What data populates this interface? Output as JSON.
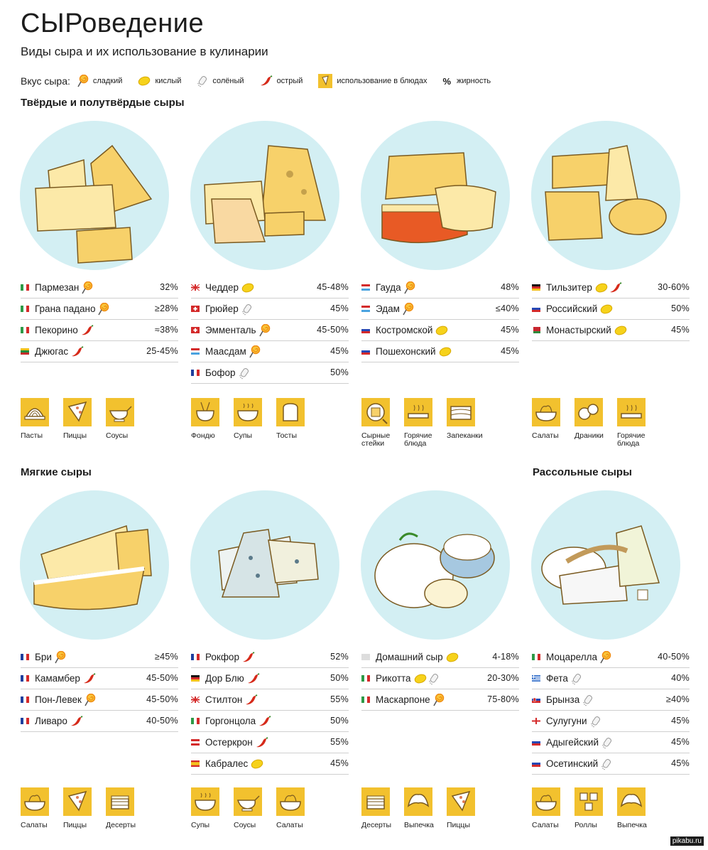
{
  "header": {
    "title": "СЫРоведение",
    "subtitle": "Виды сыра и их использование в кулинарии"
  },
  "legend": {
    "lead": "Вкус сыра:",
    "items": [
      {
        "icon": "lollipop-icon",
        "label": "сладкий"
      },
      {
        "icon": "lemon-icon",
        "label": "кислый"
      },
      {
        "icon": "salt-shaker-icon",
        "label": "солёный"
      },
      {
        "icon": "chili-pepper-icon",
        "label": "острый"
      },
      {
        "icon": "dish-icon",
        "label": "использование в блюдах"
      },
      {
        "icon": "percent-sign",
        "symbol": "%",
        "label": "жирность"
      }
    ]
  },
  "colors": {
    "plate": "#d3eff3",
    "cheese": "#f7d16a",
    "cheese_light": "#fce9a8",
    "outline": "#7a5a20",
    "use_box": "#f2c12e",
    "lemon": "#f6d21b",
    "chili": "#d62a1a",
    "lollipop": "#f08a10"
  },
  "sections": {
    "hard": "Твёрдые и полутвёрдые сыры",
    "soft": "Мягкие сыры",
    "brine": "Рассольные сыры"
  },
  "hard": [
    {
      "plate_style": "hard-1",
      "cheeses": [
        {
          "flag": "it",
          "name": "Пармезан",
          "tags": [
            "sweet"
          ],
          "fat": "32%"
        },
        {
          "flag": "it",
          "name": "Грана падано",
          "tags": [
            "sweet"
          ],
          "fat": "≥28%"
        },
        {
          "flag": "it",
          "name": "Пекорино",
          "tags": [
            "spicy"
          ],
          "fat": "≈38%"
        },
        {
          "flag": "lt",
          "name": "Джюгас",
          "tags": [
            "spicy"
          ],
          "fat": "25-45%"
        }
      ],
      "uses": [
        {
          "icon": "pasta-icon",
          "label": "Пасты"
        },
        {
          "icon": "pizza-icon",
          "label": "Пиццы"
        },
        {
          "icon": "sauce-boat-icon",
          "label": "Соусы"
        }
      ]
    },
    {
      "plate_style": "hard-2",
      "cheeses": [
        {
          "flag": "uk",
          "name": "Чеддер",
          "tags": [
            "sour"
          ],
          "fat": "45-48%"
        },
        {
          "flag": "ch",
          "name": "Грюйер",
          "tags": [
            "salty"
          ],
          "fat": "45%"
        },
        {
          "flag": "ch",
          "name": "Эмменталь",
          "tags": [
            "sweet"
          ],
          "fat": "45-50%"
        },
        {
          "flag": "nl",
          "name": "Маасдам",
          "tags": [
            "sweet"
          ],
          "fat": "45%"
        },
        {
          "flag": "fr",
          "name": "Бофор",
          "tags": [
            "salty"
          ],
          "fat": "50%"
        }
      ],
      "uses": [
        {
          "icon": "fondue-icon",
          "label": "Фондю"
        },
        {
          "icon": "soup-icon",
          "label": "Супы"
        },
        {
          "icon": "toast-icon",
          "label": "Тосты"
        }
      ]
    },
    {
      "plate_style": "hard-3",
      "cheeses": [
        {
          "flag": "lu",
          "name": "Гауда",
          "tags": [
            "sweet"
          ],
          "fat": "48%"
        },
        {
          "flag": "lu",
          "name": "Эдам",
          "tags": [
            "sweet"
          ],
          "fat": "≤40%"
        },
        {
          "flag": "ru",
          "name": "Костромской",
          "tags": [
            "sour"
          ],
          "fat": "45%"
        },
        {
          "flag": "ru",
          "name": "Пошехонский",
          "tags": [
            "sour"
          ],
          "fat": "45%"
        }
      ],
      "uses": [
        {
          "icon": "cheese-steak-icon",
          "label": "Сырные стейки"
        },
        {
          "icon": "hot-dish-icon",
          "label": "Горячие блюда"
        },
        {
          "icon": "casserole-icon",
          "label": "Запеканки"
        }
      ]
    },
    {
      "plate_style": "hard-4",
      "cheeses": [
        {
          "flag": "de",
          "name": "Тильзитер",
          "tags": [
            "sour",
            "spicy"
          ],
          "fat": "30-60%"
        },
        {
          "flag": "ru",
          "name": "Российский",
          "tags": [
            "sour"
          ],
          "fat": "50%"
        },
        {
          "flag": "by",
          "name": "Монастырский",
          "tags": [
            "sour"
          ],
          "fat": "45%"
        }
      ],
      "uses": [
        {
          "icon": "salad-icon",
          "label": "Салаты"
        },
        {
          "icon": "pancakes-icon",
          "label": "Драники"
        },
        {
          "icon": "hot-dish-icon",
          "label": "Горячие блюда"
        }
      ]
    }
  ],
  "soft": [
    {
      "plate_style": "soft-1",
      "cheeses": [
        {
          "flag": "fr",
          "name": "Бри",
          "tags": [
            "sweet"
          ],
          "fat": "≥45%"
        },
        {
          "flag": "fr",
          "name": "Камамбер",
          "tags": [
            "spicy"
          ],
          "fat": "45-50%"
        },
        {
          "flag": "fr",
          "name": "Пон-Левек",
          "tags": [
            "sweet"
          ],
          "fat": "45-50%"
        },
        {
          "flag": "fr",
          "name": "Ливаро",
          "tags": [
            "spicy"
          ],
          "fat": "40-50%"
        }
      ],
      "uses": [
        {
          "icon": "salad-icon",
          "label": "Салаты"
        },
        {
          "icon": "pizza-icon",
          "label": "Пиццы"
        },
        {
          "icon": "cake-icon",
          "label": "Десерты"
        }
      ]
    },
    {
      "plate_style": "soft-2",
      "cheeses": [
        {
          "flag": "fr",
          "name": "Рокфор",
          "tags": [
            "spicy"
          ],
          "fat": "52%"
        },
        {
          "flag": "de",
          "name": "Дор Блю",
          "tags": [
            "spicy"
          ],
          "fat": "50%"
        },
        {
          "flag": "uk",
          "name": "Стилтон",
          "tags": [
            "spicy"
          ],
          "fat": "55%"
        },
        {
          "flag": "it",
          "name": "Горгонцола",
          "tags": [
            "spicy"
          ],
          "fat": "50%"
        },
        {
          "flag": "at",
          "name": "Остеркрон",
          "tags": [
            "spicy"
          ],
          "fat": "55%"
        },
        {
          "flag": "es",
          "name": "Кабралес",
          "tags": [
            "sour"
          ],
          "fat": "45%"
        }
      ],
      "uses": [
        {
          "icon": "soup-icon",
          "label": "Супы"
        },
        {
          "icon": "sauce-boat-icon",
          "label": "Соусы"
        },
        {
          "icon": "salad-icon",
          "label": "Салаты"
        }
      ]
    },
    {
      "plate_style": "soft-3",
      "cheeses": [
        {
          "flag": "none",
          "name": "Домашний сыр",
          "tags": [
            "sour"
          ],
          "fat": "4-18%"
        },
        {
          "flag": "it",
          "name": "Рикотта",
          "tags": [
            "sour",
            "salty"
          ],
          "fat": "20-30%"
        },
        {
          "flag": "it",
          "name": "Маскарпоне",
          "tags": [
            "sweet"
          ],
          "fat": "75-80%"
        }
      ],
      "uses": [
        {
          "icon": "cake-icon",
          "label": "Десерты"
        },
        {
          "icon": "croissant-icon",
          "label": "Выпечка"
        },
        {
          "icon": "pizza-icon",
          "label": "Пиццы"
        }
      ]
    },
    {
      "plate_style": "brine-1",
      "cheeses": [
        {
          "flag": "it",
          "name": "Моцарелла",
          "tags": [
            "sweet"
          ],
          "fat": "40-50%"
        },
        {
          "flag": "gr",
          "name": "Фета",
          "tags": [
            "salty"
          ],
          "fat": "40%"
        },
        {
          "flag": "sk",
          "name": "Брынза",
          "tags": [
            "salty"
          ],
          "fat": "≥40%"
        },
        {
          "flag": "ge",
          "name": "Сулугуни",
          "tags": [
            "salty"
          ],
          "fat": "45%"
        },
        {
          "flag": "ru",
          "name": "Адыгейский",
          "tags": [
            "salty"
          ],
          "fat": "45%"
        },
        {
          "flag": "ru",
          "name": "Осетинский",
          "tags": [
            "salty"
          ],
          "fat": "45%"
        }
      ],
      "uses": [
        {
          "icon": "salad-icon",
          "label": "Салаты"
        },
        {
          "icon": "rolls-icon",
          "label": "Роллы"
        },
        {
          "icon": "croissant-icon",
          "label": "Выпечка"
        }
      ]
    }
  ],
  "watermark": "pikabu.ru"
}
